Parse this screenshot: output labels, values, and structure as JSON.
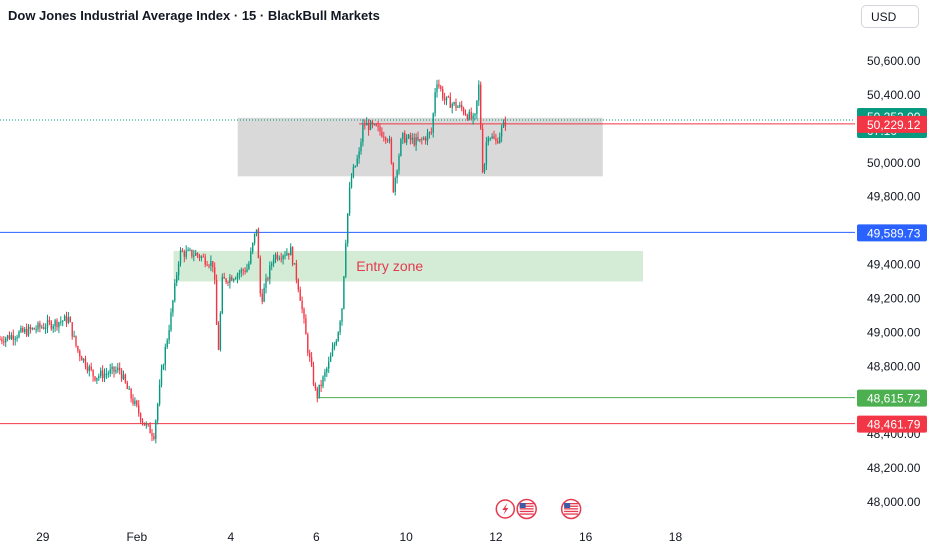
{
  "header": {
    "title": "Dow Jones Industrial Average Index · 15 · BlackBull Markets",
    "currency": "USD"
  },
  "colors": {
    "up": "#089981",
    "down": "#f23645",
    "blue_line": "#2962ff",
    "red_line": "#f23645",
    "green_line": "#4caf50",
    "grey_zone": "#d9d9d9",
    "entry_zone": "#d4ecd6"
  },
  "chart_data": {
    "type": "candlestick",
    "title": "Dow Jones Industrial Average Index · 15 · BlackBull Markets",
    "ylim": [
      47920,
      50700
    ],
    "y_ticks": [
      "50,600.00",
      "50,400.00",
      "50,000.00",
      "49,800.00",
      "49,400.00",
      "49,200.00",
      "49,000.00",
      "48,800.00",
      "48,400.00",
      "48,200.00",
      "48,000.00"
    ],
    "y_tick_values": [
      50600,
      50400,
      50000,
      49800,
      49400,
      49200,
      49000,
      48800,
      48400,
      48200,
      48000
    ],
    "x_ticks": [
      "29",
      "Feb",
      "4",
      "6",
      "10",
      "12",
      "16",
      "18"
    ],
    "x_tick_positions": [
      0.05,
      0.16,
      0.27,
      0.37,
      0.475,
      0.58,
      0.685,
      0.79
    ],
    "price_path": [
      [
        0.0,
        48960
      ],
      [
        0.04,
        49020
      ],
      [
        0.08,
        49080
      ],
      [
        0.09,
        48900
      ],
      [
        0.11,
        48740
      ],
      [
        0.14,
        48780
      ],
      [
        0.15,
        48650
      ],
      [
        0.17,
        48450
      ],
      [
        0.18,
        48400
      ],
      [
        0.19,
        48800
      ],
      [
        0.2,
        49100
      ],
      [
        0.21,
        49470
      ],
      [
        0.23,
        49460
      ],
      [
        0.25,
        49400
      ],
      [
        0.255,
        48860
      ],
      [
        0.26,
        49300
      ],
      [
        0.29,
        49380
      ],
      [
        0.3,
        49620
      ],
      [
        0.305,
        49180
      ],
      [
        0.32,
        49450
      ],
      [
        0.34,
        49480
      ],
      [
        0.35,
        49250
      ],
      [
        0.36,
        48900
      ],
      [
        0.37,
        48620
      ],
      [
        0.385,
        48820
      ],
      [
        0.395,
        49000
      ],
      [
        0.4,
        49150
      ],
      [
        0.405,
        49600
      ],
      [
        0.41,
        49900
      ],
      [
        0.42,
        50050
      ],
      [
        0.425,
        50230
      ],
      [
        0.44,
        50200
      ],
      [
        0.455,
        50150
      ],
      [
        0.46,
        49850
      ],
      [
        0.47,
        50150
      ],
      [
        0.49,
        50120
      ],
      [
        0.505,
        50180
      ],
      [
        0.51,
        50500
      ],
      [
        0.52,
        50370
      ],
      [
        0.54,
        50320
      ],
      [
        0.555,
        50240
      ],
      [
        0.56,
        50450
      ],
      [
        0.565,
        49910
      ],
      [
        0.57,
        50180
      ],
      [
        0.58,
        50120
      ],
      [
        0.592,
        50252
      ]
    ],
    "zones": [
      {
        "type": "rectangle",
        "x0": 0.278,
        "x1": 0.705,
        "y0": 49920,
        "y1": 50265,
        "label": ""
      },
      {
        "type": "rectangle",
        "x0": 0.203,
        "x1": 0.752,
        "y0": 49300,
        "y1": 49480,
        "label": "Entry zone"
      }
    ],
    "levels": [
      {
        "value": 49589.73,
        "label": "49,589.73",
        "color": "#2962ff",
        "extent": "full"
      },
      {
        "value": 48461.79,
        "label": "48,461.79",
        "color": "#f23645",
        "extent": "full"
      },
      {
        "value": 48615.72,
        "label": "48,615.72",
        "color": "#4caf50",
        "extent": "partial",
        "x0": 0.37
      },
      {
        "value": 50229.12,
        "label": "50,229.12",
        "color": "#f23645",
        "extent": "partial",
        "x0": 0.42
      }
    ],
    "current_price": {
      "value": 50252.0,
      "label": "50,252.00",
      "countdown": "07:10",
      "color": "#089981"
    },
    "event_markers": [
      {
        "x": 0.591,
        "kind": "lightning"
      },
      {
        "x": 0.616,
        "kind": "us-flag"
      },
      {
        "x": 0.668,
        "kind": "us-flag"
      }
    ]
  }
}
